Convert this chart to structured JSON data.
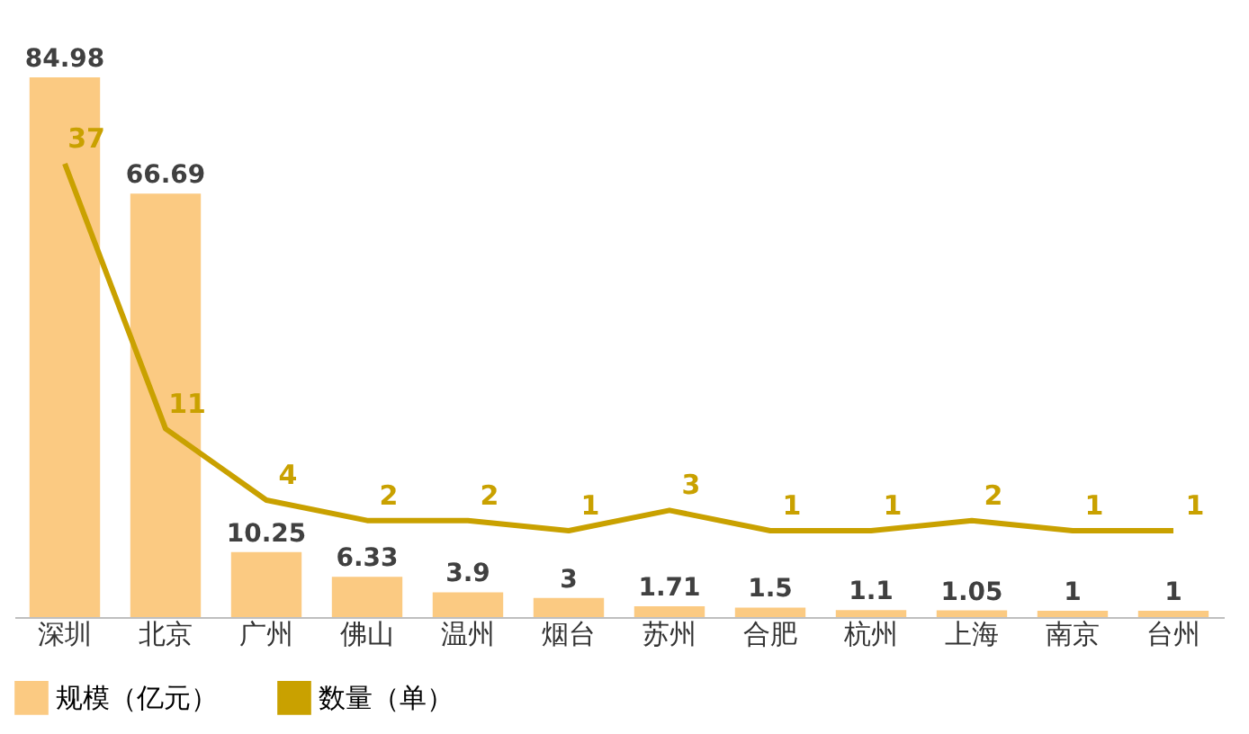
{
  "chart_data": {
    "type": "bar",
    "categories": [
      "深圳",
      "北京",
      "广州",
      "佛山",
      "温州",
      "烟台",
      "苏州",
      "合肥",
      "杭州",
      "上海",
      "南京",
      "台州"
    ],
    "series": [
      {
        "name": "规模（亿元）",
        "color": "#fbca82",
        "values": [
          84.98,
          66.69,
          10.25,
          6.33,
          3.9,
          3,
          1.71,
          1.5,
          1.1,
          1.05,
          1,
          1
        ]
      },
      {
        "name": "数量（单）",
        "type": "line",
        "axis": "y2",
        "color": "#c9a100",
        "values": [
          37,
          11,
          4,
          2,
          2,
          1,
          3,
          1,
          1,
          2,
          1,
          1
        ]
      }
    ],
    "data_labels": true,
    "tick_labels": "x",
    "legend": "bottom",
    "marker": "none",
    "line_style": "solid"
  }
}
